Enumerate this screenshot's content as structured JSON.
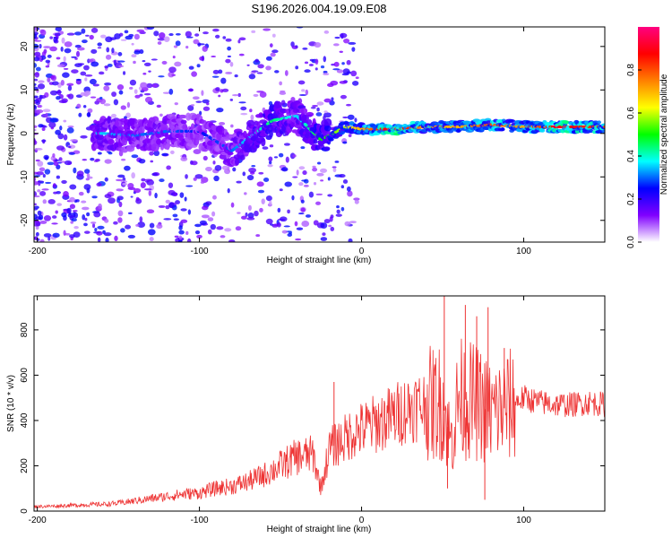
{
  "figure_title": "S196.2026.004.19.09.E08",
  "chart_data": [
    {
      "type": "heatmap",
      "title": "S196.2026.004.19.09.E08",
      "xlabel": "Height of straight line (km)",
      "ylabel": "Frequency (Hz)",
      "xlim": [
        -202,
        150
      ],
      "ylim": [
        -25,
        24.5
      ],
      "xticks": [
        -200,
        -100,
        0,
        100
      ],
      "yticks": [
        -20,
        -10,
        0,
        10,
        20
      ],
      "colorbar": {
        "label": "Normalized spectral amplitude",
        "range": [
          0.0,
          1.0
        ],
        "ticks": [
          0.0,
          0.2,
          0.4,
          0.6,
          0.8
        ],
        "tick_labels": [
          "0.0",
          "0.2",
          "0.4",
          "0.6",
          "0.8"
        ],
        "colormap": [
          "#ffffff",
          "#8000ff",
          "#0000ff",
          "#00ffff",
          "#00ff00",
          "#ffff00",
          "#ff8000",
          "#ff0000",
          "#ff0080"
        ]
      },
      "ridge": [
        {
          "x": -160,
          "freq": 0.0,
          "amp": 0.35
        },
        {
          "x": -140,
          "freq": -0.5,
          "amp": 0.3
        },
        {
          "x": -120,
          "freq": 0.5,
          "amp": 0.3
        },
        {
          "x": -100,
          "freq": 0.5,
          "amp": 0.25
        },
        {
          "x": -80,
          "freq": -4.0,
          "amp": 0.3
        },
        {
          "x": -55,
          "freq": 3.0,
          "amp": 0.45
        },
        {
          "x": -40,
          "freq": 4.0,
          "amp": 0.35
        },
        {
          "x": -25,
          "freq": -1.5,
          "amp": 0.5
        },
        {
          "x": -10,
          "freq": 1.5,
          "amp": 0.6
        },
        {
          "x": 0,
          "freq": 1.0,
          "amp": 0.7
        },
        {
          "x": 20,
          "freq": 1.0,
          "amp": 0.95
        },
        {
          "x": 40,
          "freq": 1.5,
          "amp": 0.7
        },
        {
          "x": 60,
          "freq": 1.5,
          "amp": 0.7
        },
        {
          "x": 80,
          "freq": 2.0,
          "amp": 0.8
        },
        {
          "x": 100,
          "freq": 1.5,
          "amp": 0.7
        },
        {
          "x": 120,
          "freq": 1.5,
          "amp": 0.9
        },
        {
          "x": 150,
          "freq": 1.5,
          "amp": 0.8
        }
      ]
    },
    {
      "type": "line",
      "xlabel": "Height of straight line (km)",
      "ylabel": "SNR (10 * v/v)",
      "xlim": [
        -202,
        150
      ],
      "ylim": [
        0,
        950
      ],
      "xticks": [
        -200,
        -100,
        0,
        100
      ],
      "yticks": [
        0,
        200,
        400,
        600,
        800
      ],
      "color": "#ee3333",
      "series": [
        {
          "name": "SNR",
          "x": [
            -202,
            -190,
            -180,
            -170,
            -160,
            -150,
            -140,
            -130,
            -120,
            -110,
            -100,
            -90,
            -80,
            -70,
            -60,
            -50,
            -40,
            -30,
            -25,
            -20,
            -15,
            -10,
            -5,
            0,
            10,
            20,
            30,
            40,
            50,
            55,
            60,
            70,
            80,
            90,
            100,
            110,
            120,
            130,
            140,
            150
          ],
          "y": [
            20,
            22,
            25,
            28,
            30,
            35,
            45,
            55,
            65,
            75,
            80,
            100,
            110,
            130,
            160,
            200,
            240,
            250,
            100,
            270,
            300,
            320,
            350,
            360,
            390,
            420,
            460,
            470,
            480,
            300,
            500,
            480,
            430,
            460,
            500,
            480,
            470,
            470,
            480,
            470
          ]
        }
      ],
      "spikes": [
        {
          "x": -17,
          "y": 570
        },
        {
          "x": 51,
          "y": 950
        },
        {
          "x": 53,
          "y": 100
        },
        {
          "x": 64,
          "y": 910
        },
        {
          "x": 71,
          "y": 860
        },
        {
          "x": 76,
          "y": 50
        },
        {
          "x": 78,
          "y": 900
        },
        {
          "x": 88,
          "y": 720
        }
      ]
    }
  ]
}
